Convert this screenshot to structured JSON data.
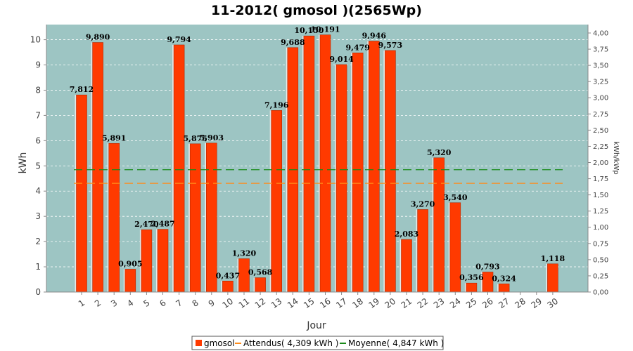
{
  "colors": {
    "plot_bg": "#9dc5c3",
    "bar": "#ff3a00",
    "bar_edge": "#b02800",
    "bar_shadow": "#e8e8e8",
    "attendus": "#ff8c1a",
    "moyenne": "#1a8a1a",
    "grid": "#ffffff"
  },
  "chart_data": {
    "type": "bar",
    "title": "11-2012( gmosol )(2565Wp)",
    "xlabel": "Jour",
    "ylabel": "kWh",
    "ylabel_right": "kWh/kWp",
    "ylim": [
      0,
      10.6
    ],
    "ylim_right": [
      0,
      4.13
    ],
    "yticks": [
      0,
      1,
      2,
      3,
      4,
      5,
      6,
      7,
      8,
      9,
      10
    ],
    "yticks_right": [
      "0,00",
      "0,25",
      "0,50",
      "0,75",
      "1,00",
      "1,25",
      "1,50",
      "1,75",
      "2,00",
      "2,25",
      "2,50",
      "2,75",
      "3,00",
      "3,25",
      "3,50",
      "3,75",
      "4,00"
    ],
    "categories": [
      "1",
      "2",
      "3",
      "4",
      "5",
      "6",
      "7",
      "8",
      "9",
      "10",
      "11",
      "12",
      "13",
      "14",
      "15",
      "16",
      "17",
      "18",
      "19",
      "20",
      "21",
      "22",
      "23",
      "24",
      "25",
      "26",
      "27",
      "28",
      "29",
      "30"
    ],
    "series": [
      {
        "name": "gmosol",
        "values": [
          7.812,
          9.89,
          5.891,
          0.905,
          2.47,
          2.487,
          9.794,
          5.875,
          5.903,
          0.437,
          1.32,
          0.568,
          7.196,
          9.688,
          10.15,
          10.191,
          9.014,
          9.479,
          9.946,
          9.573,
          2.083,
          3.27,
          5.32,
          3.54,
          0.356,
          0.793,
          0.324,
          null,
          null,
          1.118
        ],
        "labels": [
          "7,812",
          "9,890",
          "5,891",
          "0,905",
          "2,470",
          "2,487",
          "9,794",
          "5,875",
          "5,903",
          "0,437",
          "1,320",
          "0,568",
          "7,196",
          "9,688",
          "10,150",
          "10,191",
          "9,014",
          "9,479",
          "9,946",
          "9,573",
          "2,083",
          "3,270",
          "5,320",
          "3,540",
          "0,356",
          "0,793",
          "0,324",
          "",
          "",
          "1,118"
        ]
      }
    ],
    "reference_lines": [
      {
        "name": "Attendus( 4,309 kWh )",
        "value": 4.309,
        "style": "dashed",
        "color": "#ff8c1a"
      },
      {
        "name": "Moyenne( 4,847 kWh )",
        "value": 4.847,
        "style": "dashed",
        "color": "#1a8a1a"
      }
    ],
    "grid": true,
    "legend_position": "bottom"
  }
}
